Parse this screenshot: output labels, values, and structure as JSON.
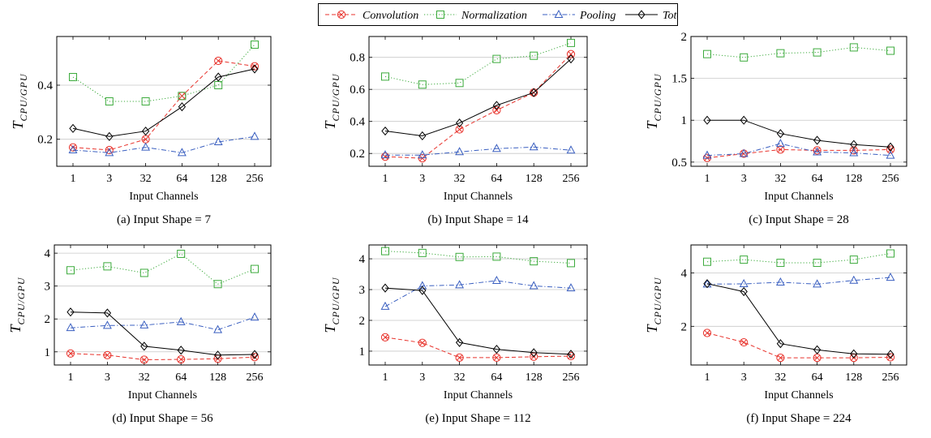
{
  "legend": {
    "items": [
      {
        "name": "Convolution",
        "color": "#e8332c",
        "dash": "dashed",
        "marker": "circle-x"
      },
      {
        "name": "Normalization",
        "color": "#3dab3d",
        "dash": "dotted",
        "marker": "square"
      },
      {
        "name": "Pooling",
        "color": "#3a5fc0",
        "dash": "dashdot",
        "marker": "triangle"
      },
      {
        "name": "Total",
        "color": "#000000",
        "dash": "solid",
        "marker": "diamond"
      }
    ]
  },
  "chart_data": [
    {
      "type": "line",
      "caption": "(a) Input Shape = 7",
      "xlabel": "Input Channels",
      "ylabel": "T_{CPU/GPU}",
      "categories": [
        "1",
        "3",
        "32",
        "64",
        "128",
        "256"
      ],
      "ylim": [
        0.1,
        0.58
      ],
      "yticks": [
        0.2,
        0.4
      ],
      "ytick_labels": [
        "0.2",
        "0.4"
      ],
      "grid": "horizontal",
      "series": [
        {
          "name": "Convolution",
          "values": [
            0.17,
            0.16,
            0.2,
            0.36,
            0.49,
            0.47
          ]
        },
        {
          "name": "Normalization",
          "values": [
            0.43,
            0.34,
            0.34,
            0.36,
            0.4,
            0.55
          ]
        },
        {
          "name": "Pooling",
          "values": [
            0.16,
            0.15,
            0.17,
            0.15,
            0.19,
            0.21
          ]
        },
        {
          "name": "Total",
          "values": [
            0.24,
            0.21,
            0.23,
            0.32,
            0.43,
            0.46
          ]
        }
      ]
    },
    {
      "type": "line",
      "caption": "(b) Input Shape = 14",
      "xlabel": "Input Channels",
      "ylabel": "T_{CPU/GPU}",
      "categories": [
        "1",
        "3",
        "32",
        "64",
        "128",
        "256"
      ],
      "ylim": [
        0.12,
        0.93
      ],
      "yticks": [
        0.2,
        0.4,
        0.6,
        0.8
      ],
      "ytick_labels": [
        "0.2",
        "0.4",
        "0.6",
        "0.8"
      ],
      "grid": "horizontal",
      "series": [
        {
          "name": "Convolution",
          "values": [
            0.18,
            0.17,
            0.35,
            0.47,
            0.58,
            0.82
          ]
        },
        {
          "name": "Normalization",
          "values": [
            0.68,
            0.63,
            0.64,
            0.79,
            0.81,
            0.89
          ]
        },
        {
          "name": "Pooling",
          "values": [
            0.19,
            0.19,
            0.21,
            0.23,
            0.24,
            0.22
          ]
        },
        {
          "name": "Total",
          "values": [
            0.34,
            0.31,
            0.39,
            0.5,
            0.58,
            0.79
          ]
        }
      ]
    },
    {
      "type": "line",
      "caption": "(c) Input Shape = 28",
      "xlabel": "Input Channels",
      "ylabel": "T_{CPU/GPU}",
      "categories": [
        "1",
        "3",
        "32",
        "64",
        "128",
        "256"
      ],
      "ylim": [
        0.45,
        2.0
      ],
      "yticks": [
        0.5,
        1,
        1.5,
        2
      ],
      "ytick_labels": [
        "0.5",
        "1",
        "1.5",
        "2"
      ],
      "grid": "horizontal",
      "series": [
        {
          "name": "Convolution",
          "values": [
            0.55,
            0.6,
            0.65,
            0.64,
            0.64,
            0.65
          ]
        },
        {
          "name": "Normalization",
          "values": [
            1.79,
            1.75,
            1.8,
            1.81,
            1.87,
            1.83
          ]
        },
        {
          "name": "Pooling",
          "values": [
            0.58,
            0.6,
            0.72,
            0.62,
            0.61,
            0.58
          ]
        },
        {
          "name": "Total",
          "values": [
            1.0,
            1.0,
            0.84,
            0.76,
            0.71,
            0.68
          ]
        }
      ]
    },
    {
      "type": "line",
      "caption": "(d) Input Shape = 56",
      "xlabel": "Input Channels",
      "ylabel": "T_{CPU/GPU}",
      "categories": [
        "1",
        "3",
        "32",
        "64",
        "128",
        "256"
      ],
      "ylim": [
        0.6,
        4.25
      ],
      "yticks": [
        1,
        2,
        3,
        4
      ],
      "ytick_labels": [
        "1",
        "2",
        "3",
        "4"
      ],
      "grid": "horizontal",
      "series": [
        {
          "name": "Convolution",
          "values": [
            0.95,
            0.9,
            0.76,
            0.77,
            0.79,
            0.84
          ]
        },
        {
          "name": "Normalization",
          "values": [
            3.48,
            3.6,
            3.4,
            3.98,
            3.06,
            3.52
          ]
        },
        {
          "name": "Pooling",
          "values": [
            1.73,
            1.8,
            1.81,
            1.91,
            1.67,
            2.05
          ]
        },
        {
          "name": "Total",
          "values": [
            2.21,
            2.18,
            1.17,
            1.05,
            0.9,
            0.92
          ]
        }
      ]
    },
    {
      "type": "line",
      "caption": "(e) Input Shape = 112",
      "xlabel": "Input Channels",
      "ylabel": "T_{CPU/GPU}",
      "categories": [
        "1",
        "3",
        "32",
        "64",
        "128",
        "256"
      ],
      "ylim": [
        0.55,
        4.45
      ],
      "yticks": [
        1,
        2,
        3,
        4
      ],
      "ytick_labels": [
        "1",
        "2",
        "3",
        "4"
      ],
      "grid": "horizontal",
      "series": [
        {
          "name": "Convolution",
          "values": [
            1.45,
            1.27,
            0.79,
            0.79,
            0.82,
            0.84
          ]
        },
        {
          "name": "Normalization",
          "values": [
            4.25,
            4.19,
            4.06,
            4.07,
            3.92,
            3.86
          ]
        },
        {
          "name": "Pooling",
          "values": [
            2.45,
            3.12,
            3.15,
            3.29,
            3.12,
            3.05
          ]
        },
        {
          "name": "Total",
          "values": [
            3.05,
            2.97,
            1.28,
            1.06,
            0.95,
            0.9
          ]
        }
      ]
    },
    {
      "type": "line",
      "caption": "(f) Input Shape = 224",
      "xlabel": "Input Channels",
      "ylabel": "T_{CPU/GPU}",
      "categories": [
        "1",
        "3",
        "32",
        "64",
        "128",
        "256"
      ],
      "ylim": [
        0.55,
        5.05
      ],
      "yticks": [
        2,
        4
      ],
      "ytick_labels": [
        "2",
        "4"
      ],
      "grid": "horizontal",
      "series": [
        {
          "name": "Convolution",
          "values": [
            1.75,
            1.4,
            0.82,
            0.82,
            0.82,
            0.84
          ]
        },
        {
          "name": "Normalization",
          "values": [
            4.42,
            4.5,
            4.38,
            4.38,
            4.5,
            4.73
          ]
        },
        {
          "name": "Pooling",
          "values": [
            3.58,
            3.59,
            3.65,
            3.58,
            3.72,
            3.83
          ]
        },
        {
          "name": "Total",
          "values": [
            3.6,
            3.3,
            1.35,
            1.12,
            0.97,
            0.95
          ]
        }
      ]
    }
  ]
}
